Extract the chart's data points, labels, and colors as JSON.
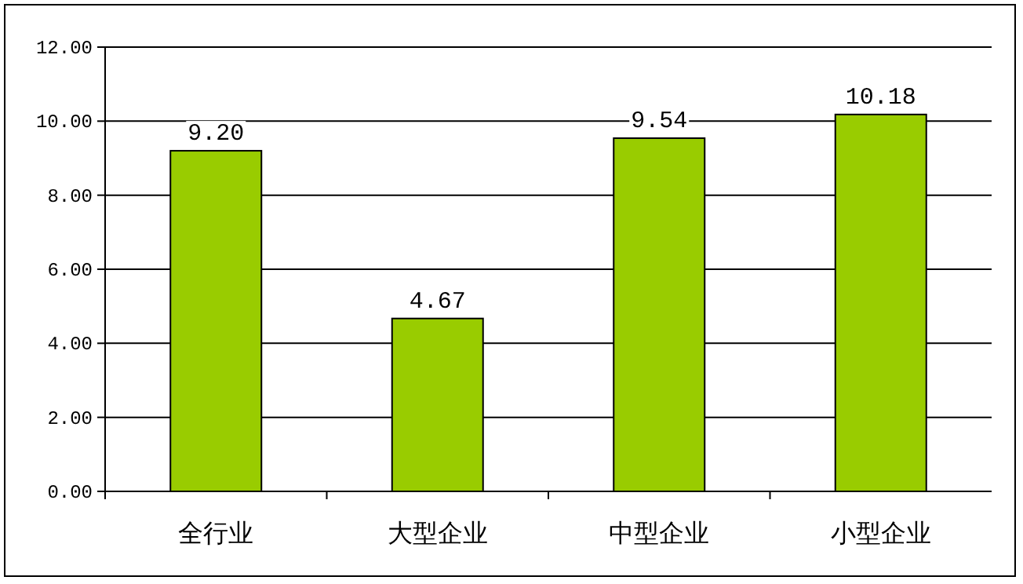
{
  "chart_data": {
    "type": "bar",
    "categories": [
      "全行业",
      "大型企业",
      "中型企业",
      "小型企业"
    ],
    "values": [
      9.2,
      4.67,
      9.54,
      10.18
    ],
    "value_labels": [
      "9.20",
      "4.67",
      "9.54",
      "10.18"
    ],
    "color": "#99cc00",
    "ylim": [
      0,
      12
    ],
    "yticks": [
      {
        "value": 0,
        "label": "0.00"
      },
      {
        "value": 2,
        "label": "2.00"
      },
      {
        "value": 4,
        "label": "4.00"
      },
      {
        "value": 6,
        "label": "6.00"
      },
      {
        "value": 8,
        "label": "8.00"
      },
      {
        "value": 10,
        "label": "10.00"
      },
      {
        "value": 12,
        "label": "12.00"
      }
    ],
    "grid": "y"
  }
}
